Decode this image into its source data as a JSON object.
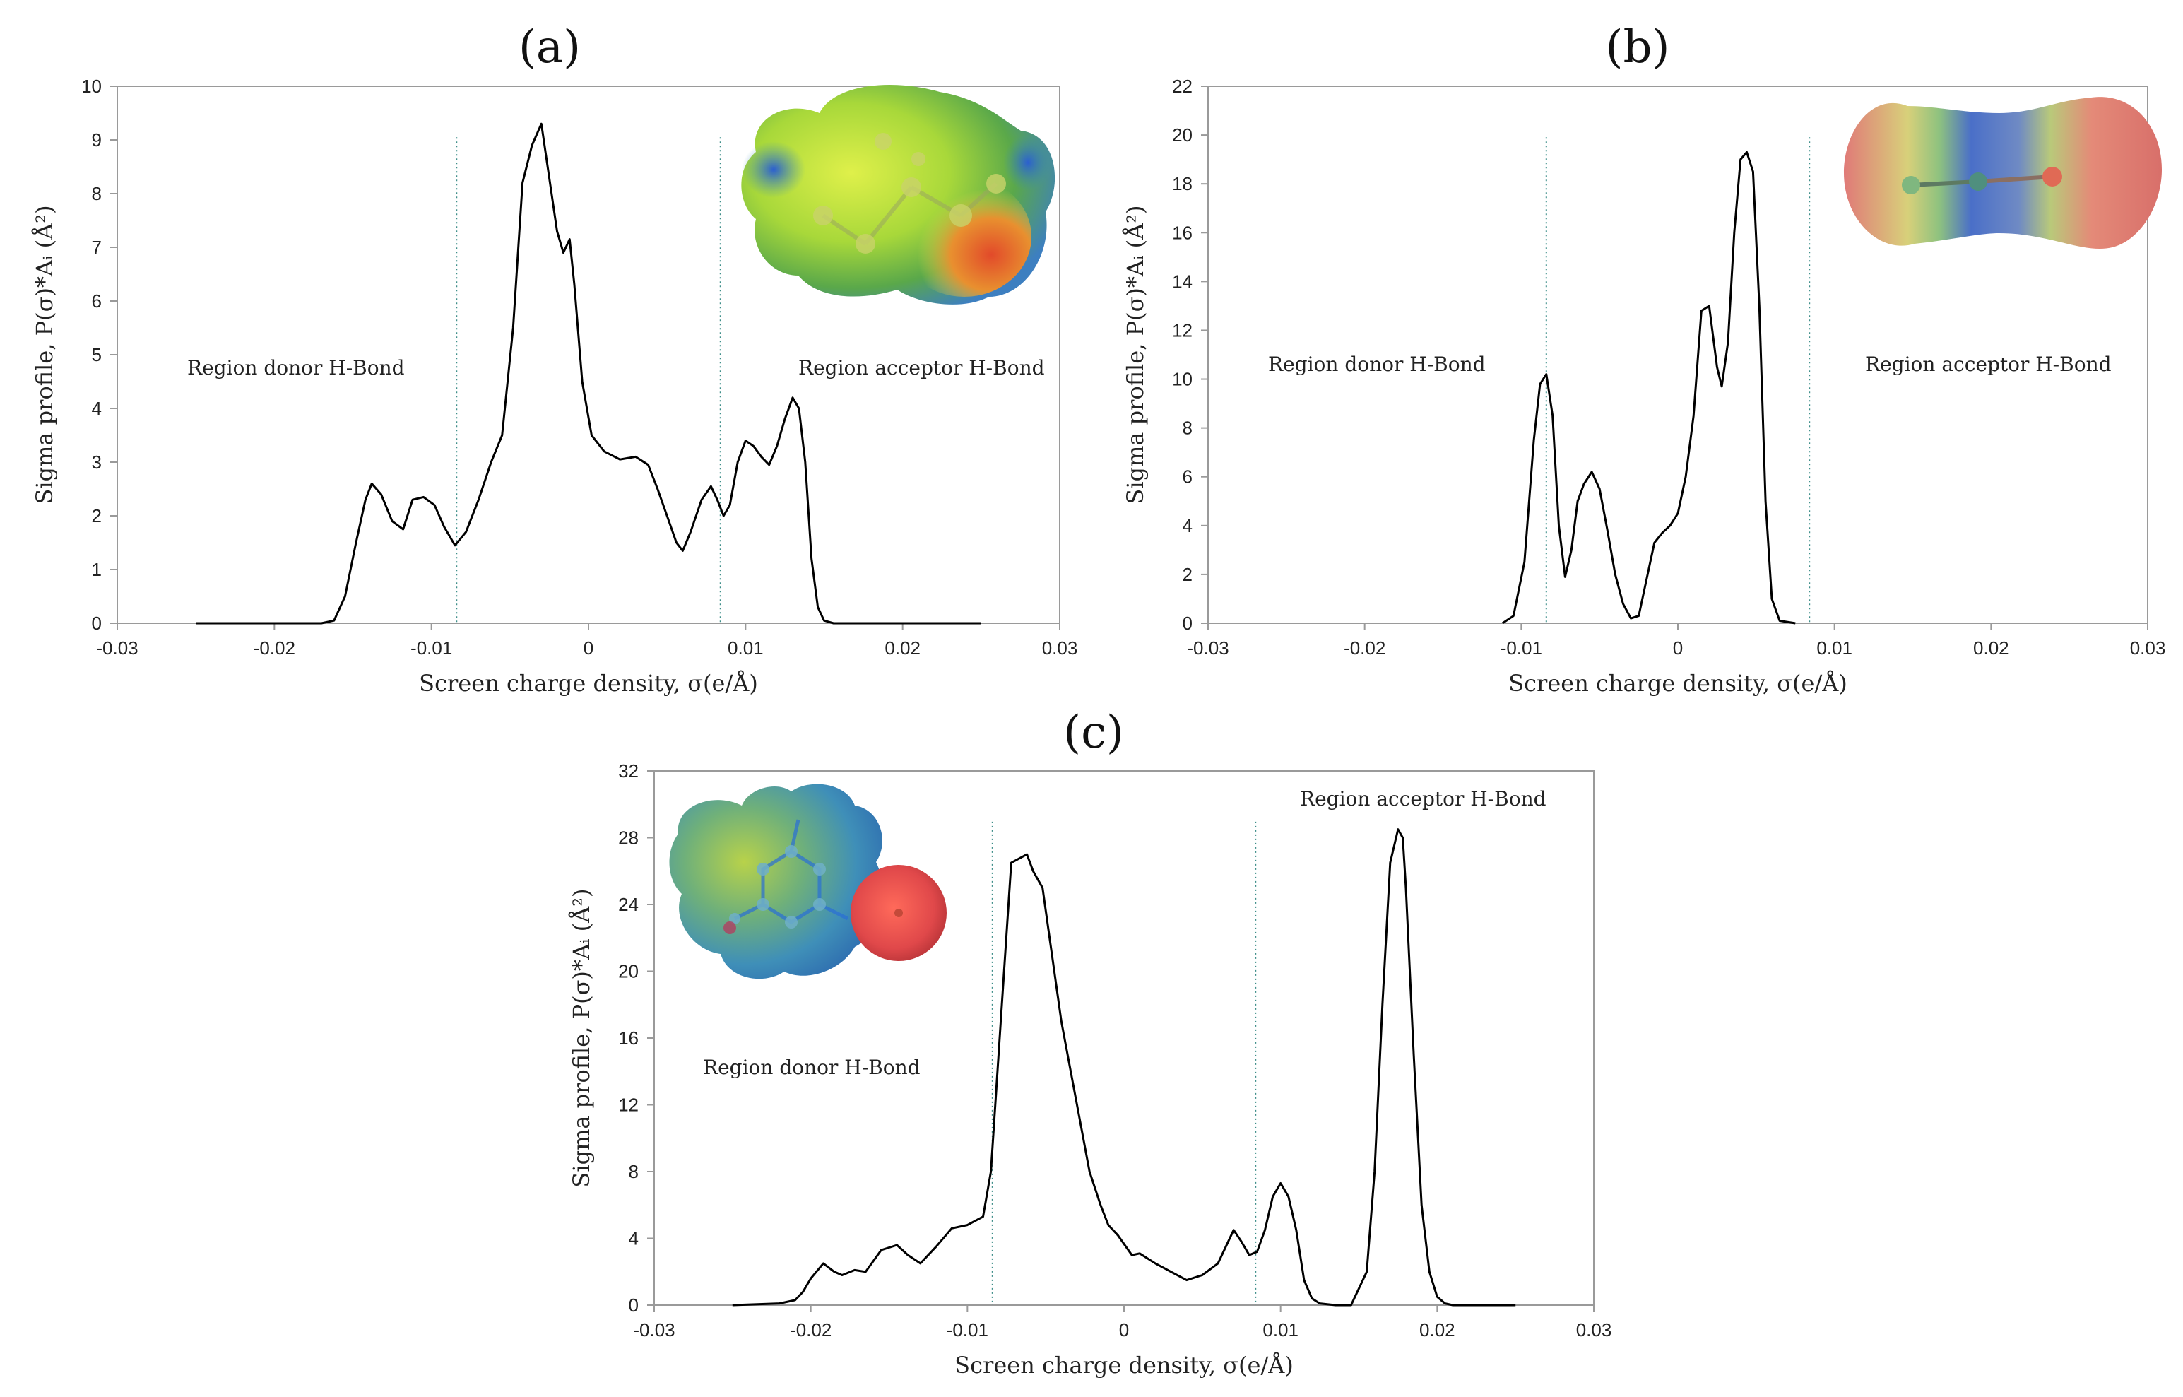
{
  "figure": {
    "panels": [
      {
        "id": "a",
        "label": "(a)"
      },
      {
        "id": "b",
        "label": "(b)"
      },
      {
        "id": "c",
        "label": "(c)"
      }
    ]
  },
  "chart_data": [
    {
      "type": "line",
      "panel": "(a)",
      "xlabel": "Screen charge density, σ(e/Å)",
      "ylabel": "Sigma profile, P(σ)*Aᵢ (Å²)",
      "xlim": [
        -0.03,
        0.03
      ],
      "ylim": [
        0,
        10
      ],
      "xticks": [
        -0.03,
        -0.02,
        -0.01,
        0,
        0.01,
        0.02,
        0.03
      ],
      "xtick_labels": [
        "-0.03",
        "-0.02",
        "-0.01",
        "0",
        "0.01",
        "0.02",
        "0.03"
      ],
      "yticks": [
        0,
        1,
        2,
        3,
        4,
        5,
        6,
        7,
        8,
        9,
        10
      ],
      "ytick_labels": [
        "0",
        "1",
        "2",
        "3",
        "4",
        "5",
        "6",
        "7",
        "8",
        "9",
        "10"
      ],
      "hbond_cutoffs": [
        -0.0084,
        0.0084
      ],
      "annotations": [
        "Region donor H-Bond",
        "Region acceptor H-Bond"
      ],
      "series": [
        {
          "name": "sigma profile",
          "x": [
            -0.025,
            -0.017,
            -0.0162,
            -0.0155,
            -0.0148,
            -0.0142,
            -0.0138,
            -0.0132,
            -0.0125,
            -0.0118,
            -0.0112,
            -0.0105,
            -0.0098,
            -0.0092,
            -0.0085,
            -0.0078,
            -0.007,
            -0.0062,
            -0.0055,
            -0.0048,
            -0.0042,
            -0.0036,
            -0.003,
            -0.0025,
            -0.002,
            -0.0016,
            -0.0012,
            -0.0009,
            -0.0004,
            0.0002,
            0.001,
            0.002,
            0.003,
            0.0038,
            0.0044,
            0.005,
            0.0056,
            0.006,
            0.0065,
            0.0072,
            0.0078,
            0.0082,
            0.0086,
            0.009,
            0.0095,
            0.01,
            0.0105,
            0.011,
            0.0115,
            0.012,
            0.0125,
            0.013,
            0.0134,
            0.0138,
            0.0142,
            0.0146,
            0.015,
            0.0156,
            0.0165,
            0.025
          ],
          "y": [
            0,
            0,
            0.05,
            0.5,
            1.5,
            2.3,
            2.6,
            2.4,
            1.9,
            1.75,
            2.3,
            2.35,
            2.2,
            1.8,
            1.45,
            1.7,
            2.3,
            3.0,
            3.5,
            5.5,
            8.2,
            8.9,
            9.3,
            8.3,
            7.3,
            6.9,
            7.15,
            6.3,
            4.5,
            3.5,
            3.2,
            3.05,
            3.1,
            2.95,
            2.5,
            2.0,
            1.5,
            1.35,
            1.7,
            2.3,
            2.55,
            2.3,
            2.0,
            2.2,
            3.0,
            3.4,
            3.3,
            3.1,
            2.95,
            3.3,
            3.8,
            4.2,
            4.0,
            3.0,
            1.2,
            0.3,
            0.05,
            0,
            0,
            0
          ]
        }
      ]
    },
    {
      "type": "line",
      "panel": "(b)",
      "xlabel": "Screen charge density, σ(e/Å)",
      "ylabel": "Sigma profile, P(σ)*Aᵢ (Å²)",
      "xlim": [
        -0.03,
        0.03
      ],
      "ylim": [
        0,
        22
      ],
      "xticks": [
        -0.03,
        -0.02,
        -0.01,
        0,
        0.01,
        0.02,
        0.03
      ],
      "xtick_labels": [
        "-0.03",
        "-0.02",
        "-0.01",
        "0",
        "0.01",
        "0.02",
        "0.03"
      ],
      "yticks": [
        0,
        2,
        4,
        6,
        8,
        10,
        12,
        14,
        16,
        18,
        20,
        22
      ],
      "ytick_labels": [
        "0",
        "2",
        "4",
        "6",
        "8",
        "10",
        "12",
        "14",
        "16",
        "18",
        "20",
        "22"
      ],
      "hbond_cutoffs": [
        -0.0084,
        0.0084
      ],
      "annotations": [
        "Region donor H-Bond",
        "Region acceptor H-Bond"
      ],
      "series": [
        {
          "name": "sigma profile",
          "x": [
            -0.0112,
            -0.0105,
            -0.0098,
            -0.0092,
            -0.0088,
            -0.0084,
            -0.008,
            -0.0076,
            -0.0072,
            -0.0068,
            -0.0064,
            -0.006,
            -0.0055,
            -0.005,
            -0.0045,
            -0.004,
            -0.0035,
            -0.003,
            -0.0025,
            -0.002,
            -0.0015,
            -0.001,
            -0.0005,
            0,
            0.0005,
            0.001,
            0.0015,
            0.002,
            0.0025,
            0.0028,
            0.0032,
            0.0036,
            0.004,
            0.0044,
            0.0048,
            0.0052,
            0.0056,
            0.006,
            0.0065,
            0.0075
          ],
          "y": [
            0,
            0.3,
            2.5,
            7.5,
            9.8,
            10.2,
            8.5,
            4.0,
            1.9,
            3.0,
            5.0,
            5.7,
            6.2,
            5.5,
            3.8,
            2.0,
            0.8,
            0.2,
            0.3,
            1.8,
            3.3,
            3.7,
            4.0,
            4.5,
            6.0,
            8.5,
            12.8,
            13.0,
            10.5,
            9.7,
            11.5,
            16.0,
            19.0,
            19.3,
            18.5,
            13.0,
            5.0,
            1.0,
            0.1,
            0
          ]
        }
      ]
    },
    {
      "type": "line",
      "panel": "(c)",
      "xlabel": "Screen charge density, σ(e/Å)",
      "ylabel": "Sigma profile, P(σ)*Aᵢ (Å²)",
      "xlim": [
        -0.03,
        0.03
      ],
      "ylim": [
        0,
        32
      ],
      "xticks": [
        -0.03,
        -0.02,
        -0.01,
        0,
        0.01,
        0.02,
        0.03
      ],
      "xtick_labels": [
        "-0.03",
        "-0.02",
        "-0.01",
        "0",
        "0.01",
        "0.02",
        "0.03"
      ],
      "yticks": [
        0,
        4,
        8,
        12,
        16,
        20,
        24,
        28,
        32
      ],
      "ytick_labels": [
        "0",
        "4",
        "8",
        "12",
        "16",
        "20",
        "24",
        "28",
        "32"
      ],
      "hbond_cutoffs": [
        -0.0084,
        0.0084
      ],
      "annotations": [
        "Region donor H-Bond",
        "Region acceptor H-Bond"
      ],
      "series": [
        {
          "name": "sigma profile",
          "x": [
            -0.025,
            -0.022,
            -0.021,
            -0.0205,
            -0.02,
            -0.0192,
            -0.0185,
            -0.018,
            -0.0172,
            -0.0165,
            -0.0155,
            -0.0145,
            -0.0138,
            -0.013,
            -0.012,
            -0.011,
            -0.01,
            -0.009,
            -0.0085,
            -0.0078,
            -0.0072,
            -0.0068,
            -0.0062,
            -0.0058,
            -0.0052,
            -0.0046,
            -0.004,
            -0.0034,
            -0.0028,
            -0.0022,
            -0.0015,
            -0.001,
            -0.0004,
            0.0005,
            0.001,
            0.002,
            0.003,
            0.004,
            0.005,
            0.006,
            0.0065,
            0.007,
            0.0075,
            0.008,
            0.0085,
            0.009,
            0.0095,
            0.01,
            0.0105,
            0.011,
            0.0115,
            0.012,
            0.0125,
            0.0135,
            0.0145,
            0.0155,
            0.016,
            0.0165,
            0.017,
            0.0175,
            0.0178,
            0.018,
            0.0185,
            0.019,
            0.0195,
            0.02,
            0.0205,
            0.021,
            0.025
          ],
          "y": [
            0,
            0.1,
            0.3,
            0.8,
            1.6,
            2.5,
            2.0,
            1.8,
            2.1,
            2.0,
            3.3,
            3.6,
            3.0,
            2.5,
            3.5,
            4.6,
            4.8,
            5.3,
            8.0,
            18.0,
            26.5,
            26.7,
            27.0,
            26.0,
            25.0,
            21.0,
            17.0,
            14.0,
            11.0,
            8.0,
            6.0,
            4.8,
            4.2,
            3.0,
            3.1,
            2.5,
            2.0,
            1.5,
            1.8,
            2.5,
            3.5,
            4.5,
            3.8,
            3.0,
            3.2,
            4.5,
            6.5,
            7.3,
            6.5,
            4.5,
            1.5,
            0.4,
            0.1,
            0,
            0,
            2.0,
            8.0,
            18.0,
            26.5,
            28.5,
            28.0,
            25.0,
            15.0,
            6.0,
            2.0,
            0.5,
            0.1,
            0,
            0
          ]
        }
      ]
    }
  ]
}
